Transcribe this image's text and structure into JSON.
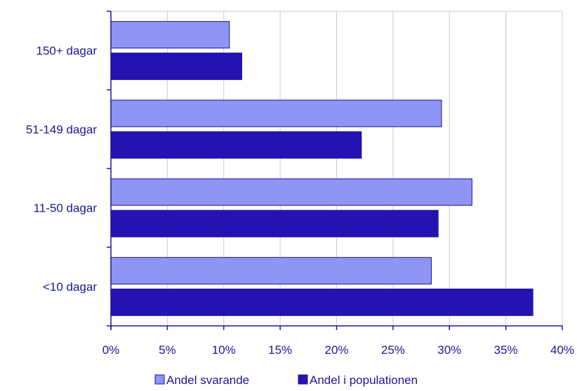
{
  "chart_data": {
    "type": "bar",
    "orientation": "horizontal",
    "categories": [
      "150+ dagar",
      "51-149 dagar",
      "11-50 dagar",
      "<10 dagar"
    ],
    "series": [
      {
        "name": "Andel svarande",
        "values": [
          10.5,
          29.3,
          32.0,
          28.4
        ],
        "color": "#8f94f5"
      },
      {
        "name": "Andel i populationen",
        "values": [
          11.6,
          22.2,
          29.0,
          37.4
        ],
        "color": "#2412b3"
      }
    ],
    "xlim": [
      0,
      40
    ],
    "x_ticks": [
      0,
      5,
      10,
      15,
      20,
      25,
      30,
      35,
      40
    ],
    "x_tick_labels": [
      "0%",
      "5%",
      "10%",
      "15%",
      "20%",
      "25%",
      "30%",
      "35%",
      "40%"
    ],
    "grid": "vertical",
    "legend": "bottom",
    "colors": {
      "text": "#1a1896",
      "axis": "#1a1896",
      "grid": "#c8c8ee"
    }
  }
}
